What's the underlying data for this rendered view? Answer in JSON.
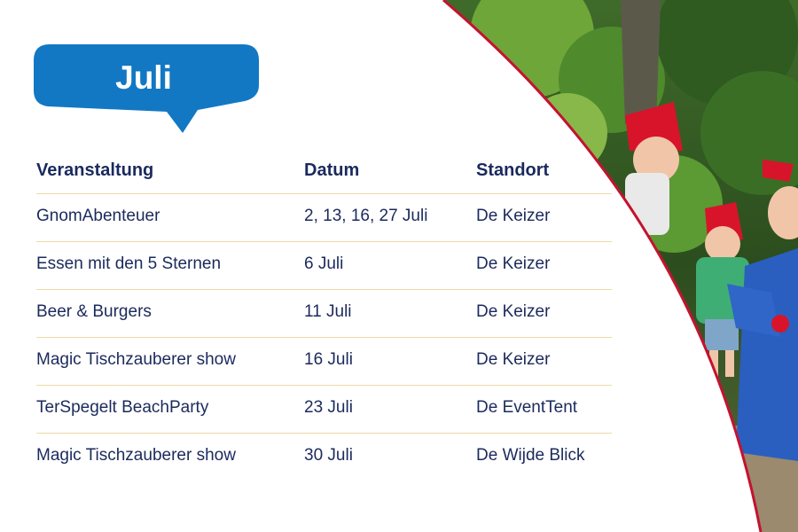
{
  "month": "Juli",
  "colors": {
    "badge": "#1278c3",
    "text": "#1b2a5c",
    "divider": "#f1d9a3",
    "accent_curve": "#c4122f"
  },
  "table": {
    "headers": [
      "Veranstaltung",
      "Datum",
      "Standort"
    ],
    "rows": [
      {
        "event": "GnomAbenteuer",
        "date": "2, 13, 16, 27 Juli",
        "location": "De Keizer"
      },
      {
        "event": "Essen mit den 5 Sternen",
        "date": "6 Juli",
        "location": "De Keizer"
      },
      {
        "event": "Beer & Burgers",
        "date": "11 Juli",
        "location": "De Keizer"
      },
      {
        "event": "Magic Tischzauberer show",
        "date": "16 Juli",
        "location": "De Keizer"
      },
      {
        "event": "TerSpegelt BeachParty",
        "date": "23 Juli",
        "location": "De EventTent"
      },
      {
        "event": "Magic Tischzauberer show",
        "date": "30 Juli",
        "location": "De Wijde Blick"
      }
    ]
  }
}
